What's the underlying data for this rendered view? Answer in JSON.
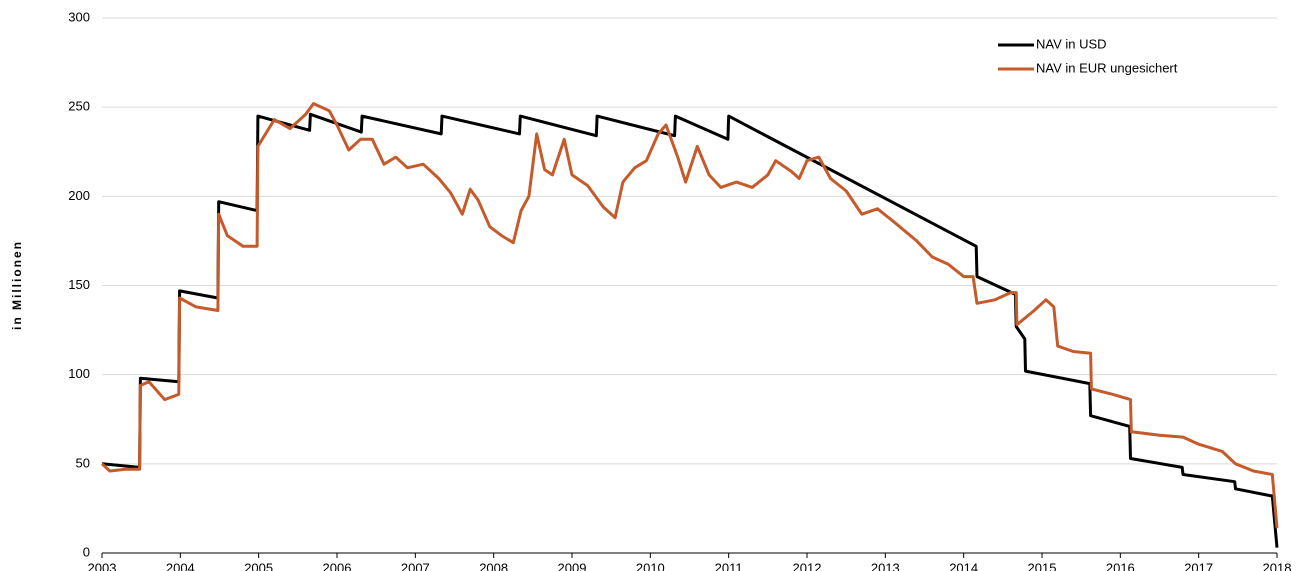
{
  "chart_data": {
    "type": "line",
    "y_label": "in Millionen",
    "xlim": [
      2003,
      2018
    ],
    "xticks": [
      2003,
      2004,
      2005,
      2006,
      2007,
      2008,
      2009,
      2010,
      2011,
      2012,
      2013,
      2014,
      2015,
      2016,
      2017,
      2018
    ],
    "ylim": [
      0,
      300
    ],
    "yticks": [
      0,
      50,
      100,
      150,
      200,
      250,
      300
    ],
    "grid": true,
    "legend": "top-right",
    "series": [
      {
        "name": "NAV in USD",
        "color": "#000000",
        "x": [
          2003.0,
          2003.48,
          2003.49,
          2003.98,
          2003.99,
          2004.48,
          2004.49,
          2004.98,
          2004.99,
          2005.65,
          2005.66,
          2006.31,
          2006.32,
          2007.33,
          2007.34,
          2008.33,
          2008.34,
          2009.31,
          2009.32,
          2010.31,
          2010.32,
          2010.99,
          2011.0,
          2014.16,
          2014.17,
          2014.66,
          2014.67,
          2014.78,
          2014.79,
          2015.61,
          2015.62,
          2016.12,
          2016.13,
          2016.79,
          2016.8,
          2017.46,
          2017.47,
          2017.93,
          2017.94,
          2018.0
        ],
        "values": [
          50,
          48,
          98,
          96,
          147,
          143,
          197,
          192,
          245,
          237,
          246,
          236,
          245,
          235,
          245,
          235,
          245,
          234,
          245,
          234,
          245,
          232,
          245,
          172,
          155,
          145,
          127,
          120,
          102,
          95,
          77,
          71,
          53,
          48,
          44,
          40,
          36,
          32,
          32,
          3
        ]
      },
      {
        "name": "NAV in EUR ungesichert",
        "color": "#c55a2b",
        "x": [
          2003.0,
          2003.1,
          2003.3,
          2003.48,
          2003.49,
          2003.6,
          2003.8,
          2003.98,
          2003.99,
          2004.2,
          2004.48,
          2004.49,
          2004.6,
          2004.8,
          2004.98,
          2004.99,
          2005.2,
          2005.4,
          2005.6,
          2005.7,
          2005.9,
          2006.0,
          2006.15,
          2006.3,
          2006.45,
          2006.6,
          2006.75,
          2006.9,
          2007.1,
          2007.3,
          2007.45,
          2007.6,
          2007.7,
          2007.8,
          2007.95,
          2008.1,
          2008.25,
          2008.35,
          2008.45,
          2008.55,
          2008.65,
          2008.75,
          2008.9,
          2009.0,
          2009.2,
          2009.4,
          2009.55,
          2009.65,
          2009.8,
          2009.95,
          2010.1,
          2010.2,
          2010.35,
          2010.45,
          2010.6,
          2010.75,
          2010.9,
          2011.1,
          2011.3,
          2011.5,
          2011.6,
          2011.8,
          2011.9,
          2012.0,
          2012.15,
          2012.3,
          2012.5,
          2012.7,
          2012.9,
          2013.1,
          2013.4,
          2013.6,
          2013.8,
          2014.0,
          2014.12,
          2014.17,
          2014.4,
          2014.6,
          2014.67,
          2014.68,
          2014.9,
          2015.05,
          2015.15,
          2015.2,
          2015.4,
          2015.62,
          2015.63,
          2015.9,
          2016.13,
          2016.14,
          2016.5,
          2016.8,
          2017.0,
          2017.3,
          2017.47,
          2017.7,
          2017.94,
          2018.0
        ],
        "values": [
          50,
          46,
          47,
          47,
          94,
          96,
          86,
          89,
          143,
          138,
          136,
          190,
          178,
          172,
          172,
          228,
          243,
          238,
          246,
          252,
          248,
          240,
          226,
          232,
          232,
          218,
          222,
          216,
          218,
          210,
          202,
          190,
          204,
          198,
          183,
          178,
          174,
          192,
          200,
          235,
          215,
          212,
          232,
          212,
          206,
          194,
          188,
          208,
          216,
          220,
          235,
          240,
          222,
          208,
          228,
          212,
          205,
          208,
          205,
          212,
          220,
          214,
          210,
          220,
          222,
          210,
          203,
          190,
          193,
          186,
          175,
          166,
          162,
          155,
          155,
          140,
          142,
          146,
          146,
          128,
          136,
          142,
          138,
          116,
          113,
          112,
          92,
          89,
          86,
          68,
          66,
          65,
          61,
          57,
          50,
          46,
          44,
          14
        ]
      }
    ]
  }
}
